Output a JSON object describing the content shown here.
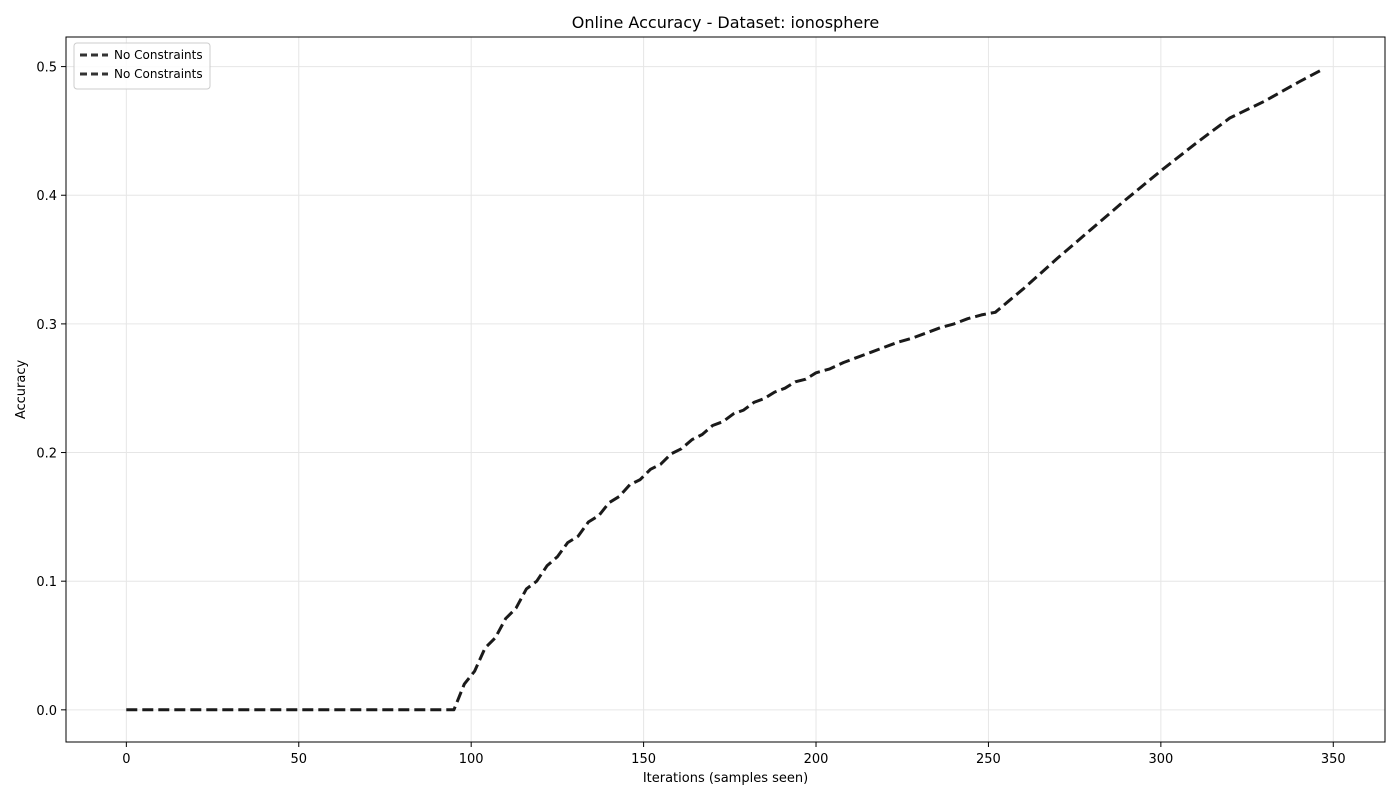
{
  "chart_data": {
    "type": "line",
    "title": "Online Accuracy - Dataset: ionosphere",
    "xlabel": "Iterations (samples seen)",
    "ylabel": "Accuracy",
    "xlim": [
      -17.5,
      365
    ],
    "ylim": [
      -0.025,
      0.523
    ],
    "xticks": [
      0,
      50,
      100,
      150,
      200,
      250,
      300,
      350
    ],
    "yticks": [
      0.0,
      0.1,
      0.2,
      0.3,
      0.4,
      0.5
    ],
    "xtick_labels": [
      "0",
      "50",
      "100",
      "150",
      "200",
      "250",
      "300",
      "350"
    ],
    "ytick_labels": [
      "0.0",
      "0.1",
      "0.2",
      "0.3",
      "0.4",
      "0.5"
    ],
    "grid": true,
    "legend_position": "top-left",
    "legend_entries": [
      "No Constraints",
      "No Constraints"
    ],
    "series": [
      {
        "name": "No Constraints",
        "color": "#1a1a1a",
        "line_style": "dashed",
        "x": [
          0,
          95,
          98,
          101,
          104,
          107,
          110,
          113,
          116,
          119,
          122,
          125,
          128,
          131,
          134,
          137,
          140,
          143,
          146,
          149,
          152,
          155,
          158,
          161,
          164,
          167,
          170,
          173,
          176,
          179,
          182,
          185,
          188,
          191,
          194,
          197,
          200,
          204,
          208,
          212,
          216,
          220,
          224,
          228,
          232,
          236,
          240,
          244,
          248,
          252,
          256,
          260,
          270,
          280,
          290,
          300,
          310,
          320,
          330,
          340,
          347
        ],
        "y": [
          0.0,
          0.0,
          0.02,
          0.03,
          0.048,
          0.056,
          0.071,
          0.079,
          0.094,
          0.1,
          0.112,
          0.119,
          0.13,
          0.135,
          0.146,
          0.151,
          0.161,
          0.166,
          0.175,
          0.179,
          0.187,
          0.191,
          0.199,
          0.203,
          0.21,
          0.214,
          0.221,
          0.224,
          0.23,
          0.233,
          0.239,
          0.242,
          0.247,
          0.25,
          0.255,
          0.257,
          0.262,
          0.265,
          0.27,
          0.274,
          0.278,
          0.282,
          0.286,
          0.289,
          0.293,
          0.297,
          0.3,
          0.304,
          0.307,
          0.309,
          0.318,
          0.327,
          0.351,
          0.374,
          0.397,
          0.419,
          0.44,
          0.46,
          0.473,
          0.488,
          0.498
        ]
      }
    ]
  }
}
